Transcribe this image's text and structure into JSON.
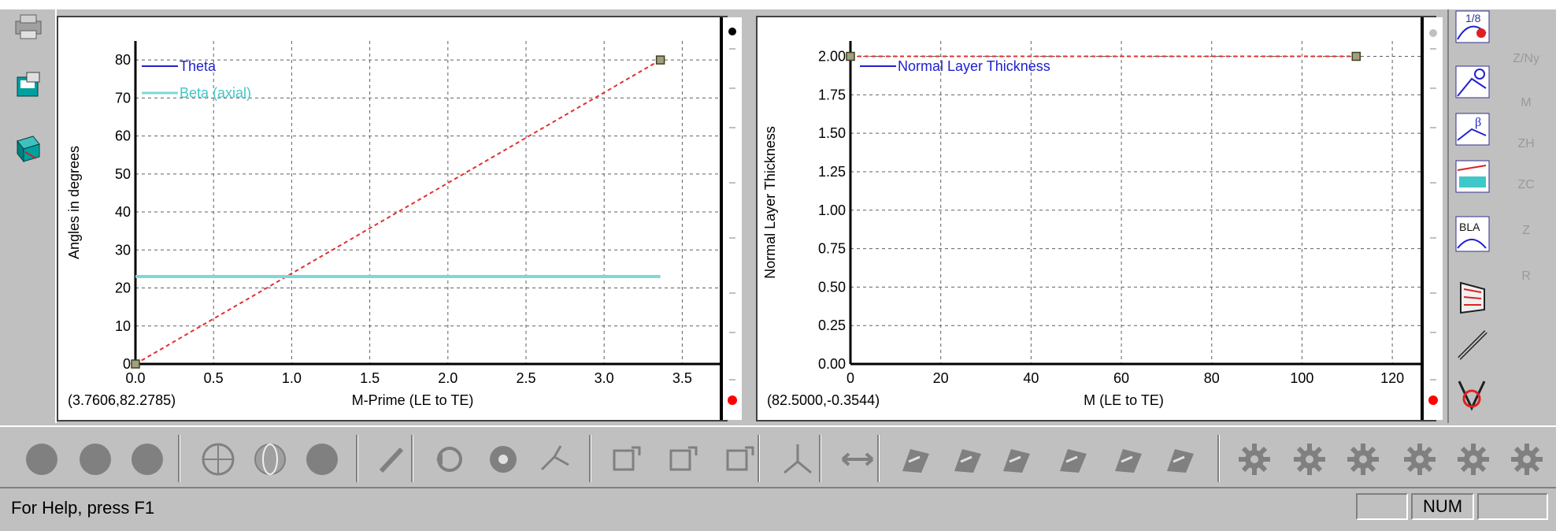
{
  "chart_data": [
    {
      "type": "line",
      "title": "",
      "xlabel": "M-Prime (LE to TE)",
      "ylabel": "Angles in degrees",
      "xlim": [
        0,
        3.75
      ],
      "ylim": [
        0,
        85
      ],
      "xticks": [
        "0.0",
        "0.5",
        "1.0",
        "1.5",
        "2.0",
        "2.5",
        "3.0",
        "3.5"
      ],
      "yticks": [
        "0",
        "10",
        "20",
        "30",
        "40",
        "50",
        "60",
        "70",
        "80"
      ],
      "grid": true,
      "legend": "top-left",
      "series": [
        {
          "name": "Theta",
          "x": [
            0.0,
            3.36
          ],
          "y": [
            0,
            80
          ]
        },
        {
          "name": "Beta (axial)",
          "x": [
            0.0,
            3.36
          ],
          "y": [
            23,
            23
          ]
        }
      ],
      "cursor_readout": "(3.7606,82.2785)"
    },
    {
      "type": "line",
      "title": "",
      "xlabel": "M (LE to TE)",
      "ylabel": "Normal Layer Thickness",
      "xlim": [
        0,
        128
      ],
      "ylim": [
        0,
        2.1
      ],
      "xticks": [
        "0",
        "20",
        "40",
        "60",
        "80",
        "100",
        "120"
      ],
      "yticks": [
        "0.00",
        "0.25",
        "0.50",
        "0.75",
        "1.00",
        "1.25",
        "1.50",
        "1.75",
        "2.00"
      ],
      "grid": true,
      "legend": "top-left",
      "series": [
        {
          "name": "Normal Layer Thickness",
          "x": [
            0,
            112
          ],
          "y": [
            2.0,
            2.0
          ]
        }
      ],
      "cursor_readout": "(82.5000,-0.3544)"
    }
  ],
  "colors": {
    "theta": "#e03030",
    "beta": "#7fd8d8",
    "thickness": "#e03030",
    "legend_theta_text": "#2020d0",
    "legend_beta_text": "#40c8c8",
    "legend_thickness_text": "#2020d0"
  },
  "right_toolbar": {
    "top_label": "1/8",
    "bla_label": "BLA"
  },
  "far_right_labels": [
    "Z/Ny",
    "M",
    "ZH",
    "ZC",
    "Z",
    "R"
  ],
  "icons": {
    "left": [
      "printer-icon",
      "save-window-icon",
      "cube-icon"
    ],
    "right": [
      "ratio-graph-icon",
      "theta-graph-icon",
      "beta-graph-icon",
      "thickness-graph-icon",
      "bla-graph-icon",
      "stacked-icon",
      "line-icon",
      "vertical-icon"
    ],
    "bottom": [
      "circle-1",
      "circle-2",
      "circle-3",
      "globe-grid-icon",
      "globe-icon",
      "circle-4",
      "pen-icon",
      "rotate-icon",
      "target-icon",
      "nodes-icon",
      "transform-icon-1",
      "transform-icon-2",
      "transform-icon-3",
      "branch-icon",
      "horizontal-arrow-icon",
      "blade-icon-1",
      "blade-icon-2",
      "blade-icon-3",
      "blade-icon-4",
      "blade-icon-5",
      "blade-icon-6",
      "gear-icon-1",
      "gear-icon-2",
      "gear-icon-3",
      "gear-icon-4",
      "gear-icon-5",
      "gear-icon-6"
    ]
  },
  "status": {
    "help_text": "For Help, press F1",
    "num_label": "NUM"
  }
}
